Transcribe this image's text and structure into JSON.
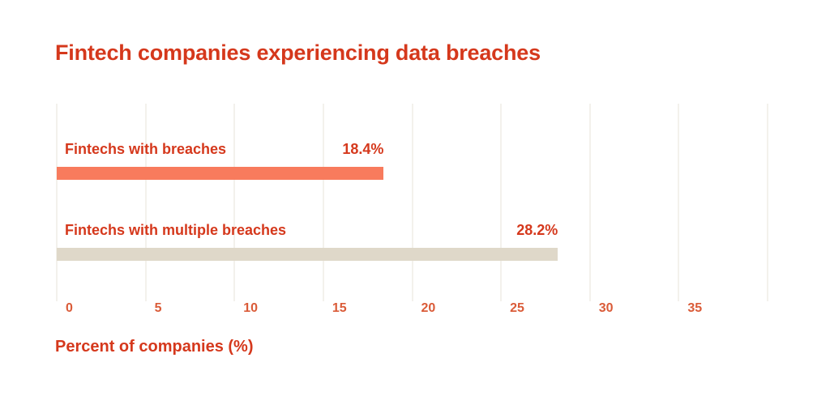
{
  "page": {
    "background": "#FFFFFF"
  },
  "chart_data": {
    "type": "bar",
    "orientation": "horizontal",
    "title": "Fintech companies experiencing data breaches",
    "xlabel": "Percent of companies (%)",
    "categories": [
      "Fintechs with breaches",
      "Fintechs with multiple breaches"
    ],
    "values": [
      18.4,
      28.2
    ],
    "value_labels": [
      "18.4%",
      "28.2%"
    ],
    "bar_colors": [
      "#F87B5D",
      "#DFD8C9"
    ],
    "xlim": [
      0,
      40
    ],
    "gridline_step": 5,
    "tick_values": [
      0,
      5,
      10,
      15,
      20,
      25,
      30,
      35
    ],
    "tick_labels": [
      "0",
      "5",
      "10",
      "15",
      "20",
      "25",
      "30",
      "35"
    ],
    "grid": "vertical-only",
    "legend": "none",
    "colors": {
      "accent_red": "#D5381C",
      "tick_orange": "#DA5B38",
      "gridline": "#F3F1EC",
      "bar_salmon": "#F87B5D",
      "bar_beige": "#DFD8C9"
    }
  }
}
